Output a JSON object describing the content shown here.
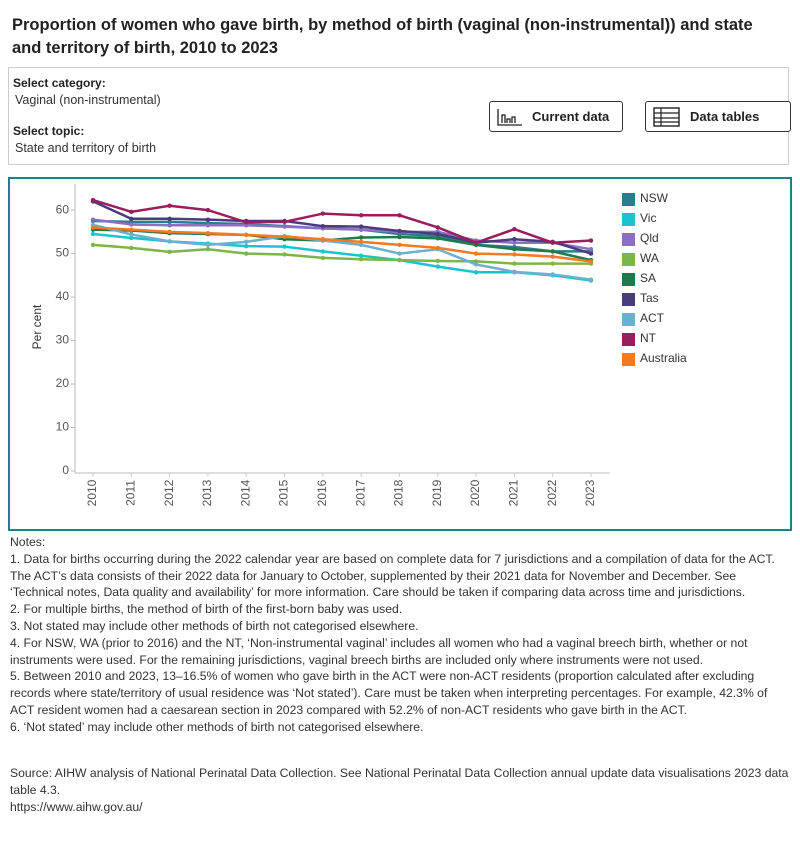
{
  "header": {
    "title": "Proportion of women who gave birth, by method of birth (vaginal (non-instrumental)) and state and territory of birth, 2010 to 2023"
  },
  "filters": [
    {
      "label": "Select category:",
      "value": "Vaginal (non-instrumental)"
    },
    {
      "label": "Select topic:",
      "value": "State and territory of birth"
    }
  ],
  "buttons": [
    "Current data",
    "Data tables"
  ],
  "chart_data": {
    "type": "line",
    "y_label": "Per cent",
    "categories": [
      "2010",
      "2011",
      "2012",
      "2013",
      "2014",
      "2015",
      "2016",
      "2017",
      "2018",
      "2019",
      "2020",
      "2021",
      "2022",
      "2023"
    ],
    "ylim": [
      0,
      66
    ],
    "yticks": [
      0,
      10,
      20,
      30,
      40,
      50,
      60
    ],
    "grid": false,
    "series": [
      {
        "name": "NSW",
        "color": "#2b7c8c",
        "values": [
          57.5,
          57.3,
          57.3,
          57,
          56.8,
          56.3,
          55.8,
          55.5,
          54.5,
          54,
          52,
          51.5,
          50.5,
          50.5
        ]
      },
      {
        "name": "Vic",
        "color": "#1cc3cf",
        "values": [
          54.5,
          53.6,
          52.8,
          52.3,
          51.7,
          51.6,
          50.5,
          49.5,
          48.5,
          47,
          45.7,
          45.7,
          45,
          43.8
        ]
      },
      {
        "name": "Qld",
        "color": "#8b70c2",
        "values": [
          57.8,
          56.7,
          56.5,
          56.5,
          56.5,
          56.2,
          55.8,
          55.5,
          55,
          55,
          53,
          52.5,
          52.5,
          51
        ]
      },
      {
        "name": "WA",
        "color": "#7cb548",
        "values": [
          52,
          51.3,
          50.4,
          51,
          50,
          49.8,
          49,
          48.7,
          48.5,
          48.3,
          48.2,
          47.7,
          47.7,
          47.7
        ]
      },
      {
        "name": "SA",
        "color": "#1f7a4b",
        "values": [
          55.5,
          55.3,
          54.7,
          54.5,
          54.3,
          53.3,
          53,
          53.7,
          53.8,
          53.5,
          52,
          51,
          50.5,
          48.5
        ]
      },
      {
        "name": "Tas",
        "color": "#4a3b7d",
        "values": [
          62,
          58,
          58,
          57.8,
          57.5,
          57.5,
          56.3,
          56.2,
          55.2,
          54.5,
          52.5,
          53.3,
          52.7,
          50
        ]
      },
      {
        "name": "ACT",
        "color": "#6bb0cf",
        "values": [
          56.6,
          54.4,
          52.8,
          52,
          52.7,
          54,
          53,
          52,
          50,
          51,
          47.5,
          45.8,
          45.2,
          44
        ]
      },
      {
        "name": "NT",
        "color": "#9a1d5c",
        "values": [
          62.3,
          59.6,
          61,
          60,
          57.2,
          57.3,
          59.2,
          58.8,
          58.8,
          56,
          52.5,
          55.6,
          52.5,
          53
        ]
      },
      {
        "name": "Australia",
        "color": "#f47a21",
        "values": [
          56,
          55.5,
          55,
          54.7,
          54.3,
          53.9,
          53.3,
          52.7,
          52,
          51.3,
          50,
          49.8,
          49.3,
          48.2
        ]
      }
    ]
  },
  "notes": {
    "heading": "Notes:",
    "items": [
      "1. Data for births occurring during the 2022 calendar year are based on complete data for 7 jurisdictions and a compilation of data for the ACT. The ACT’s data consists of their 2022 data for January to October, supplemented by their 2021 data for November and December. See ‘Technical notes, Data quality and availability’ for more information. Care should be taken if comparing data across time and jurisdictions.",
      "2. For multiple births, the method of birth of the first-born baby was used.",
      "3. Not stated may include other methods of birth not categorised elsewhere.",
      "4. For NSW, WA (prior to 2016) and the NT, ‘Non-instrumental vaginal’ includes all women who had a vaginal breech birth, whether or not instruments were used. For the remaining jurisdictions, vaginal breech births are included only where instruments were not used.",
      "5. Between 2010 and 2023, 13–16.5% of women who gave birth in the ACT were non-ACT residents (proportion calculated after excluding records where state/territory of usual residence was ‘Not stated’). Care must be taken when interpreting percentages. For example, 42.3% of ACT resident women had a caesarean section in 2023 compared with 52.2% of non-ACT residents who gave birth in the ACT.",
      "6. ‘Not stated’ may include other methods of birth not categorised elsewhere."
    ]
  },
  "source": [
    "Source: AIHW analysis of National Perinatal Data Collection. See National Perinatal Data Collection annual update data visualisations 2023 data table 4.3.",
    "https://www.aihw.gov.au/"
  ]
}
